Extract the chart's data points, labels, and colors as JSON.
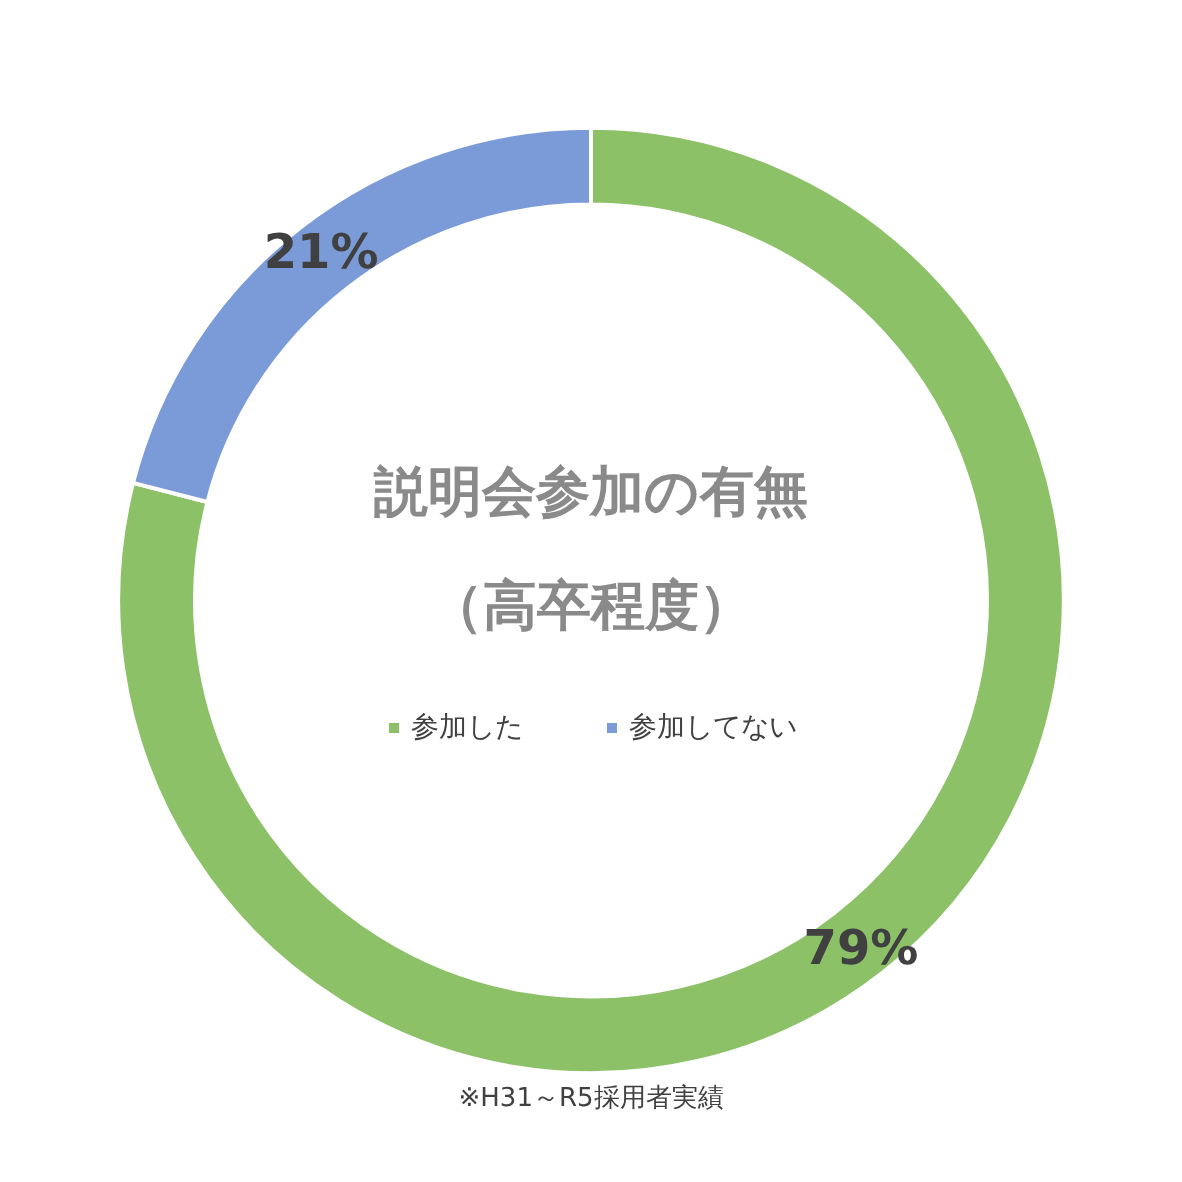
{
  "chart_data": {
    "type": "donut",
    "title": "説明会参加の有無",
    "subtitle": "（高卒程度）",
    "categories": [
      "参加した",
      "参加してない"
    ],
    "values": [
      79,
      21
    ],
    "colors": [
      "#8cc168",
      "#7b9bd8"
    ],
    "value_labels": [
      "79%",
      "21%"
    ],
    "legend": "center",
    "annotations": [
      "※H31～R5採用者実績"
    ]
  }
}
